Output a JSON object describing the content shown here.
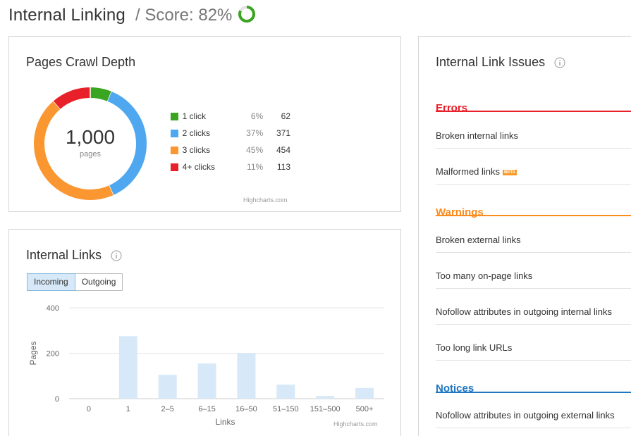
{
  "header": {
    "title": "Internal Linking",
    "score_label": "/ Score: 82%",
    "score_value": 0.82
  },
  "crawl_depth": {
    "title": "Pages Crawl Depth",
    "total": "1,000",
    "total_label": "pages",
    "credit": "Highcharts.com",
    "items": [
      {
        "label": "1 click",
        "pct": "6%",
        "count": "62",
        "color": "#3aa520"
      },
      {
        "label": "2 clicks",
        "pct": "37%",
        "count": "371",
        "color": "#4fa8ef"
      },
      {
        "label": "3 clicks",
        "pct": "45%",
        "count": "454",
        "color": "#fb9730"
      },
      {
        "label": "4+ clicks",
        "pct": "11%",
        "count": "113",
        "color": "#e8202a"
      }
    ]
  },
  "internal_links": {
    "title": "Internal Links",
    "tabs": [
      "Incoming",
      "Outgoing"
    ],
    "active_tab": "Incoming",
    "credit": "Highcharts.com"
  },
  "chart_data": {
    "type": "bar",
    "xlabel": "Links",
    "ylabel": "Pages",
    "categories": [
      "0",
      "1",
      "2–5",
      "6–15",
      "16–50",
      "51–150",
      "151–500",
      "500+"
    ],
    "values": [
      0,
      275,
      105,
      155,
      200,
      62,
      12,
      47
    ],
    "ylim": [
      0,
      400
    ],
    "yticks": [
      0,
      200,
      400
    ],
    "grid": true,
    "bar_color": "#d7e9f8"
  },
  "issues": {
    "title": "Internal Link Issues",
    "sections": [
      {
        "name": "Errors",
        "color": "#e8202a",
        "items": [
          {
            "label": "Broken internal links"
          },
          {
            "label": "Malformed links",
            "badge": "BETA"
          }
        ]
      },
      {
        "name": "Warnings",
        "color": "#fb8c1e",
        "items": [
          {
            "label": "Broken external links"
          },
          {
            "label": "Too many on-page links"
          },
          {
            "label": "Nofollow attributes in outgoing internal links"
          },
          {
            "label": "Too long link URLs"
          }
        ]
      },
      {
        "name": "Notices",
        "color": "#1f77c1",
        "items": [
          {
            "label": "Nofollow attributes in outgoing external links"
          }
        ]
      }
    ]
  }
}
